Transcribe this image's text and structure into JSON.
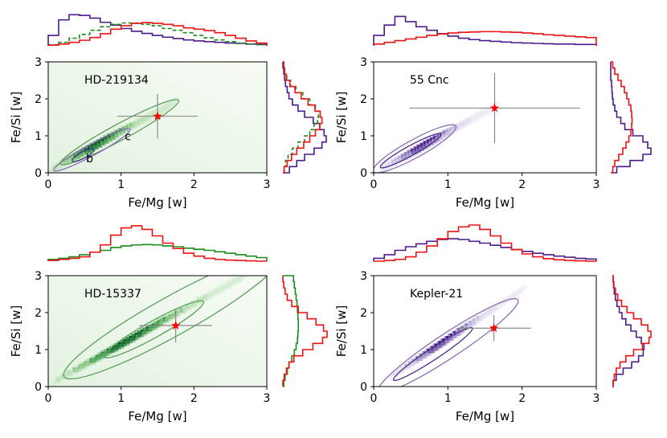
{
  "chart_data": [
    {
      "type": "scatter",
      "title": "HD-219134",
      "xlabel": "Fe/Mg [w]",
      "ylabel": "Fe/Si [w]",
      "xlim": [
        0,
        3
      ],
      "ylim": [
        0,
        3
      ],
      "xticks": [
        "0",
        "1",
        "2",
        "3"
      ],
      "yticks": [
        "0",
        "1",
        "2",
        "3"
      ],
      "colormap": "green",
      "density_ridge": {
        "x0": 0.1,
        "y0": 0.15,
        "x1": 1.7,
        "y1": 1.85
      },
      "star": {
        "x": 1.5,
        "y": 1.53,
        "xerr": 0.55,
        "yerr": 0.6,
        "color": "#ff0000"
      },
      "contours": [
        {
          "cx": 0.98,
          "cy": 1.1,
          "rx": 0.65,
          "ry": 0.1,
          "color": "#5a9e5a"
        },
        {
          "cx": 0.6,
          "cy": 0.62,
          "rx": 0.42,
          "ry": 0.07,
          "color": "#8b6bb3"
        },
        {
          "cx": 0.48,
          "cy": 0.48,
          "rx": 0.12,
          "ry": 0.04,
          "color": "#4b2d8a"
        }
      ],
      "annotations": [
        {
          "text": "c",
          "x": 1.05,
          "y": 0.88
        },
        {
          "text": "b",
          "x": 0.52,
          "y": 0.28
        }
      ],
      "top_hist": [
        {
          "name": "purple",
          "color": "#4b1a8c",
          "dashed": false,
          "values": [
            0.3,
            0.75,
            0.9,
            0.88,
            0.8,
            0.68,
            0.6,
            0.5,
            0.42,
            0.36,
            0.3,
            0.25,
            0.21,
            0.17,
            0.14,
            0.12,
            0.1,
            0.08,
            0.07,
            0.05,
            0.04
          ]
        },
        {
          "name": "green",
          "color": "#1a8c1a",
          "dashed": true,
          "values": [
            0.03,
            0.1,
            0.22,
            0.33,
            0.45,
            0.55,
            0.62,
            0.66,
            0.66,
            0.62,
            0.58,
            0.5,
            0.45,
            0.38,
            0.3,
            0.23,
            0.17,
            0.12,
            0.08,
            0.05,
            0.03
          ]
        },
        {
          "name": "red",
          "color": "#ee1111",
          "dashed": false,
          "values": [
            0.02,
            0.05,
            0.1,
            0.16,
            0.24,
            0.35,
            0.48,
            0.58,
            0.65,
            0.67,
            0.65,
            0.62,
            0.58,
            0.52,
            0.48,
            0.44,
            0.38,
            0.3,
            0.22,
            0.14,
            0.08
          ]
        }
      ],
      "right_hist": [
        {
          "name": "purple",
          "color": "#4b1a8c",
          "dashed": false,
          "values": [
            0.15,
            0.32,
            0.5,
            0.72,
            0.9,
            1.0,
            0.95,
            0.85,
            0.7,
            0.5,
            0.35,
            0.22,
            0.14,
            0.1,
            0.06,
            0.04,
            0.02,
            0.0
          ]
        },
        {
          "name": "green",
          "color": "#1a8c1a",
          "dashed": true,
          "values": [
            0.03,
            0.06,
            0.12,
            0.22,
            0.35,
            0.5,
            0.62,
            0.72,
            0.8,
            0.82,
            0.75,
            0.62,
            0.46,
            0.3,
            0.18,
            0.09,
            0.04,
            0.02
          ]
        },
        {
          "name": "red",
          "color": "#ee1111",
          "dashed": false,
          "values": [
            0.03,
            0.1,
            0.2,
            0.32,
            0.48,
            0.62,
            0.75,
            0.85,
            0.9,
            0.86,
            0.74,
            0.58,
            0.42,
            0.28,
            0.16,
            0.08,
            0.04,
            0.02
          ]
        }
      ]
    },
    {
      "type": "scatter",
      "title": "55 Cnc",
      "xlabel": "Fe/Mg [w]",
      "ylabel": "Fe/Si [w]",
      "xlim": [
        0,
        3
      ],
      "ylim": [
        0,
        3
      ],
      "xticks": [
        "0",
        "1",
        "2",
        "3"
      ],
      "yticks": [
        "0",
        "1",
        "2",
        "3"
      ],
      "colormap": "purple",
      "density_ridge": {
        "x0": 0.15,
        "y0": 0.15,
        "x1": 1.6,
        "y1": 1.75
      },
      "star": {
        "x": 1.63,
        "y": 1.75,
        "xerr": 1.15,
        "yerr": 0.95,
        "color": "#ff0000"
      },
      "contours": [
        {
          "cx": 0.55,
          "cy": 0.65,
          "rx": 0.45,
          "ry": 0.11,
          "color": "#8b6bb3"
        },
        {
          "cx": 0.5,
          "cy": 0.6,
          "rx": 0.33,
          "ry": 0.06,
          "color": "#4b2d8a"
        }
      ],
      "annotations": [],
      "top_hist": [
        {
          "name": "purple",
          "color": "#4b1a8c",
          "dashed": false,
          "values": [
            0.3,
            0.6,
            0.85,
            0.7,
            0.55,
            0.45,
            0.35,
            0.28,
            0.22,
            0.18,
            0.15,
            0.13,
            0.11,
            0.09,
            0.08,
            0.07,
            0.06,
            0.05,
            0.05,
            0.04,
            0.04
          ]
        },
        {
          "name": "red",
          "color": "#ee1111",
          "dashed": false,
          "values": [
            0.05,
            0.1,
            0.15,
            0.2,
            0.25,
            0.3,
            0.34,
            0.37,
            0.39,
            0.4,
            0.41,
            0.41,
            0.4,
            0.39,
            0.37,
            0.35,
            0.32,
            0.3,
            0.28,
            0.26,
            0.24
          ]
        }
      ],
      "right_hist": [
        {
          "name": "purple",
          "color": "#4b1a8c",
          "dashed": false,
          "values": [
            0.15,
            0.48,
            0.8,
            1.0,
            0.92,
            0.8,
            0.55,
            0.35,
            0.25,
            0.15,
            0.1,
            0.06,
            0.04,
            0.03,
            0.02,
            0.0,
            0.0,
            0.0
          ]
        },
        {
          "name": "red",
          "color": "#ee1111",
          "dashed": false,
          "values": [
            0.05,
            0.1,
            0.2,
            0.3,
            0.38,
            0.45,
            0.5,
            0.52,
            0.53,
            0.52,
            0.5,
            0.45,
            0.4,
            0.34,
            0.26,
            0.18,
            0.1,
            0.05
          ]
        }
      ]
    },
    {
      "type": "scatter",
      "title": "HD-15337",
      "xlabel": "Fe/Mg [w]",
      "ylabel": "Fe/Si [w]",
      "xlim": [
        0,
        3
      ],
      "ylim": [
        0,
        3
      ],
      "xticks": [
        "0",
        "1",
        "2",
        "3"
      ],
      "yticks": [
        "0",
        "1",
        "2",
        "3"
      ],
      "colormap": "green",
      "density_ridge": {
        "x0": 0.15,
        "y0": 0.2,
        "x1": 2.7,
        "y1": 3.0
      },
      "star": {
        "x": 1.75,
        "y": 1.65,
        "xerr": 0.5,
        "yerr": 0.45,
        "color": "#ff0000"
      },
      "contours": [
        {
          "cx": 1.7,
          "cy": 1.9,
          "rx": 1.2,
          "ry": 0.24,
          "color": "#5a9e5a"
        },
        {
          "cx": 1.45,
          "cy": 1.55,
          "rx": 0.55,
          "ry": 0.1,
          "color": "#5a9e5a"
        }
      ],
      "annotations": [],
      "top_hist": [
        {
          "name": "green",
          "color": "#1a8c1a",
          "dashed": false,
          "values": [
            0.05,
            0.08,
            0.12,
            0.18,
            0.25,
            0.3,
            0.38,
            0.42,
            0.45,
            0.46,
            0.45,
            0.42,
            0.4,
            0.36,
            0.33,
            0.3,
            0.26,
            0.22,
            0.18,
            0.14,
            0.1
          ]
        },
        {
          "name": "red",
          "color": "#ee1111",
          "dashed": false,
          "values": [
            0.02,
            0.05,
            0.08,
            0.12,
            0.25,
            0.45,
            0.72,
            0.92,
            0.98,
            0.88,
            0.7,
            0.5,
            0.35,
            0.22,
            0.14,
            0.08,
            0.05,
            0.03,
            0.02,
            0.01,
            0.0
          ]
        }
      ],
      "right_hist": [
        {
          "name": "green",
          "color": "#1a8c1a",
          "dashed": false,
          "values": [
            0.02,
            0.05,
            0.1,
            0.14,
            0.2,
            0.26,
            0.3,
            0.33,
            0.34,
            0.35,
            0.35,
            0.34,
            0.33,
            0.32,
            0.3,
            0.28,
            0.26,
            0.24
          ]
        },
        {
          "name": "red",
          "color": "#ee1111",
          "dashed": false,
          "values": [
            0.0,
            0.03,
            0.08,
            0.14,
            0.25,
            0.45,
            0.68,
            0.9,
            1.0,
            0.92,
            0.75,
            0.55,
            0.35,
            0.2,
            0.1,
            0.05,
            0.02,
            0.0
          ]
        }
      ]
    },
    {
      "type": "scatter",
      "title": "Kepler-21",
      "xlabel": "Fe/Mg [w]",
      "ylabel": "Fe/Si [w]",
      "xlim": [
        0,
        3
      ],
      "ylim": [
        0,
        3
      ],
      "xticks": [
        "0",
        "1",
        "2",
        "3"
      ],
      "yticks": [
        "0",
        "1",
        "2",
        "3"
      ],
      "colormap": "purple",
      "density_ridge": {
        "x0": 0.3,
        "y0": 0.35,
        "x1": 2.0,
        "y1": 2.6
      },
      "star": {
        "x": 1.62,
        "y": 1.58,
        "xerr": 0.5,
        "yerr": 0.35,
        "color": "#ff0000"
      },
      "contours": [
        {
          "cx": 1.0,
          "cy": 1.1,
          "rx": 0.8,
          "ry": 0.15,
          "color": "#8b6bb3"
        },
        {
          "cx": 0.8,
          "cy": 0.88,
          "rx": 0.45,
          "ry": 0.07,
          "color": "#4b2d8a"
        }
      ],
      "annotations": [],
      "top_hist": [
        {
          "name": "purple",
          "color": "#4b1a8c",
          "dashed": false,
          "values": [
            0.08,
            0.18,
            0.3,
            0.4,
            0.48,
            0.55,
            0.6,
            0.62,
            0.6,
            0.55,
            0.5,
            0.44,
            0.38,
            0.32,
            0.27,
            0.22,
            0.18,
            0.14,
            0.11,
            0.08,
            0.06
          ]
        },
        {
          "name": "red",
          "color": "#ee1111",
          "dashed": false,
          "values": [
            0.0,
            0.02,
            0.05,
            0.12,
            0.25,
            0.42,
            0.62,
            0.82,
            0.95,
            1.0,
            0.88,
            0.7,
            0.5,
            0.32,
            0.2,
            0.12,
            0.07,
            0.04,
            0.02,
            0.01,
            0.0
          ]
        }
      ],
      "right_hist": [
        {
          "name": "purple",
          "color": "#4b1a8c",
          "dashed": false,
          "values": [
            0.02,
            0.1,
            0.28,
            0.5,
            0.68,
            0.8,
            0.82,
            0.75,
            0.62,
            0.48,
            0.35,
            0.25,
            0.18,
            0.12,
            0.08,
            0.05,
            0.03,
            0.02
          ]
        },
        {
          "name": "red",
          "color": "#ee1111",
          "dashed": false,
          "values": [
            0.02,
            0.05,
            0.1,
            0.2,
            0.35,
            0.55,
            0.78,
            0.95,
            1.0,
            0.92,
            0.75,
            0.55,
            0.38,
            0.24,
            0.14,
            0.08,
            0.04,
            0.02
          ]
        }
      ]
    }
  ]
}
